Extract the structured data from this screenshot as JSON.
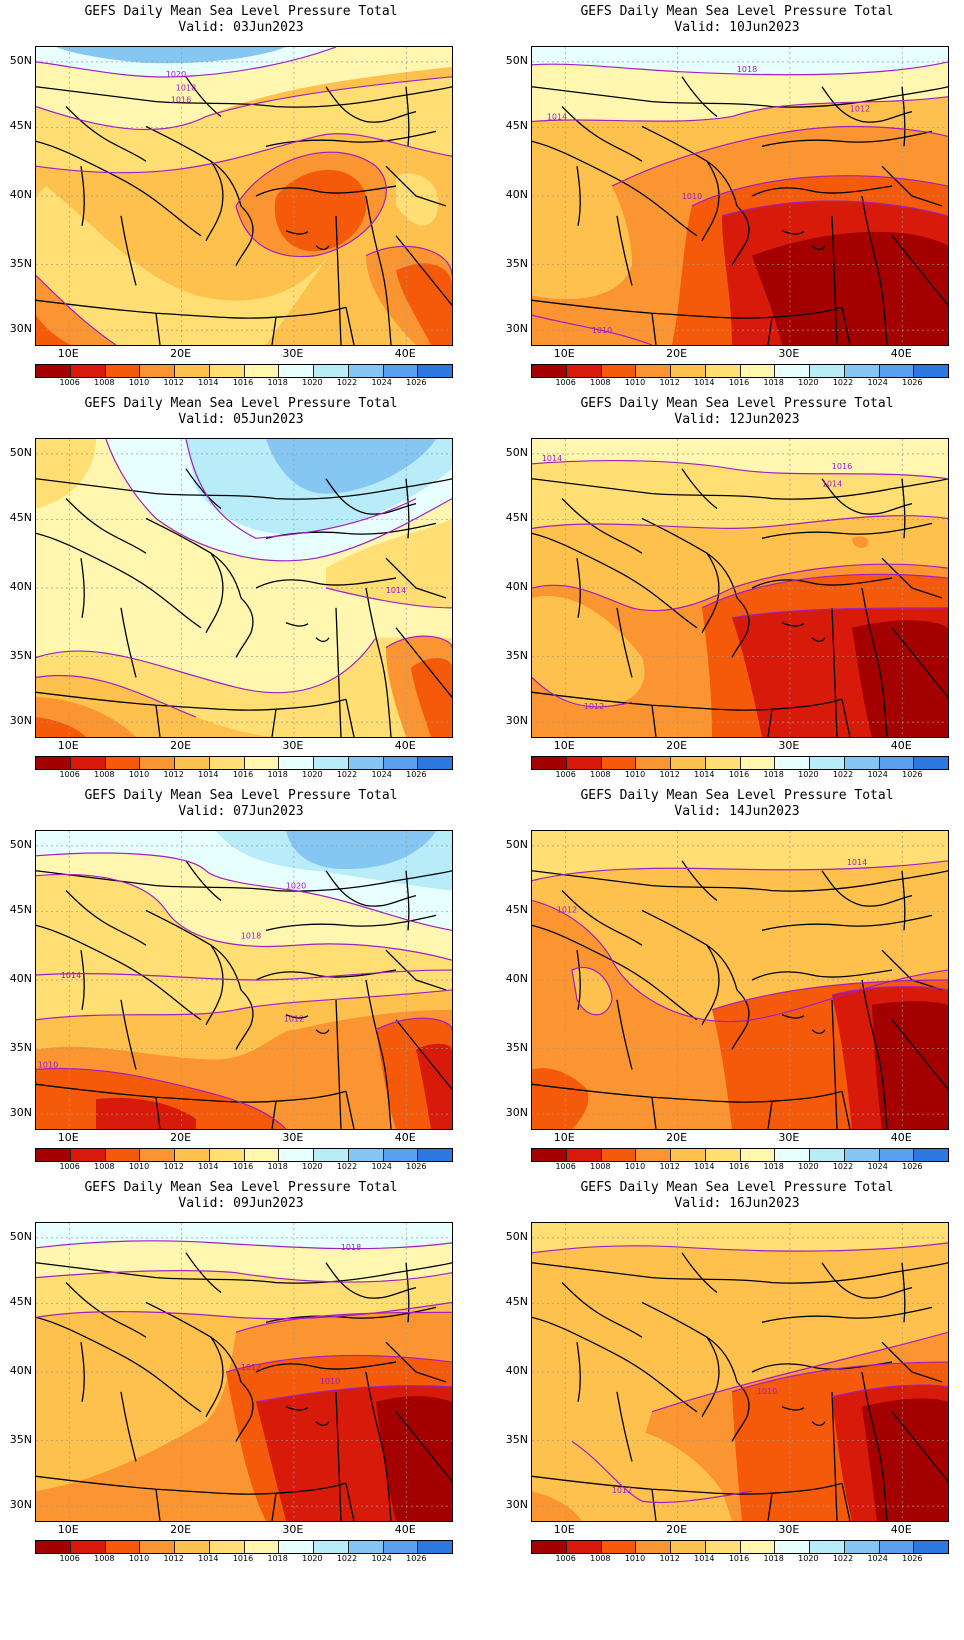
{
  "panel_title": "GEFS Daily Mean Sea Level Pressure Total",
  "lat_labels": [
    "50N",
    "45N",
    "40N",
    "35N",
    "30N"
  ],
  "lon_labels": [
    "10E",
    "20E",
    "30E",
    "40E"
  ],
  "colorbar": {
    "labels": [
      "1006",
      "1008",
      "1010",
      "1012",
      "1014",
      "1016",
      "1018",
      "1020",
      "1022",
      "1024",
      "1026"
    ],
    "colors": [
      "#a50000",
      "#d81a0a",
      "#f55a0a",
      "#fb9532",
      "#ffc14d",
      "#ffdf74",
      "#fff7b0",
      "#e8ffff",
      "#b8ecf8",
      "#86c6f2",
      "#5aa0ee",
      "#2a78e0"
    ]
  },
  "panels": [
    {
      "valid": "Valid: 03Jun2023",
      "contours": [
        "1020",
        "1018",
        "1016"
      ]
    },
    {
      "valid": "Valid: 10Jun2023",
      "contours": [
        "1018",
        "1014",
        "1012",
        "1010",
        "1010"
      ]
    },
    {
      "valid": "Valid: 05Jun2023",
      "contours": [
        "1014"
      ]
    },
    {
      "valid": "Valid: 12Jun2023",
      "contours": [
        "1014",
        "1016",
        "1014",
        "1012"
      ]
    },
    {
      "valid": "Valid: 07Jun2023",
      "contours": [
        "1020",
        "1018",
        "1014",
        "1012",
        "1010"
      ]
    },
    {
      "valid": "Valid: 14Jun2023",
      "contours": [
        "1014",
        "1012"
      ]
    },
    {
      "valid": "Valid: 09Jun2023",
      "contours": [
        "1018",
        "1012",
        "1010"
      ]
    },
    {
      "valid": "Valid: 16Jun2023",
      "contours": [
        "1010",
        "1012"
      ]
    }
  ]
}
